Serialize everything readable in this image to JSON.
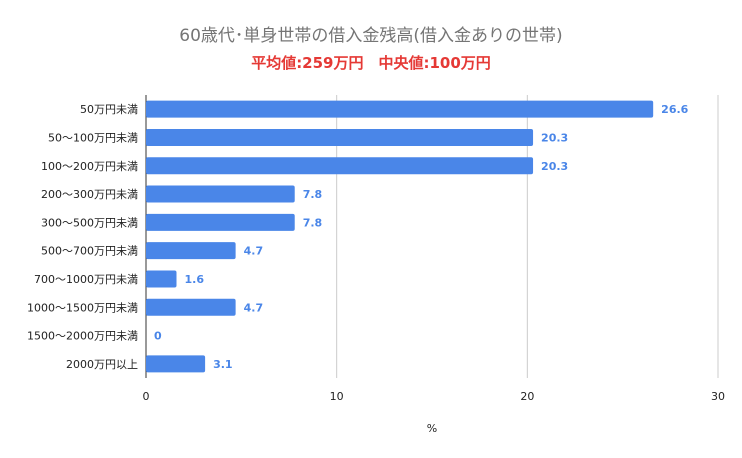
{
  "chart_data": {
    "type": "bar",
    "orientation": "horizontal",
    "title": "60歳代･単身世帯の借入金残高(借入金ありの世帯)",
    "subtitle": "平均値:259万円　中央値:100万円",
    "categories": [
      "50万円未満",
      "50〜100万円未満",
      "100〜200万円未満",
      "200〜300万円未満",
      "300〜500万円未満",
      "500〜700万円未満",
      "700〜1000万円未満",
      "1000〜1500万円未満",
      "1500〜2000万円未満",
      "2000万円以上"
    ],
    "values": [
      26.6,
      20.3,
      20.3,
      7.8,
      7.8,
      4.7,
      1.6,
      4.7,
      0,
      3.1
    ],
    "data_labels": [
      "26.6",
      "20.3",
      "20.3",
      "7.8",
      "7.8",
      "4.7",
      "1.6",
      "4.7",
      "0",
      "3.1"
    ],
    "xlabel": "%",
    "ylabel": "",
    "xlim": [
      0,
      30
    ],
    "xticks": [
      "0",
      "10",
      "20",
      "30"
    ],
    "grid": true,
    "bar_color": "#4a86e8",
    "label_color": "#4a86e8",
    "subtitle_color": "#e53935"
  }
}
